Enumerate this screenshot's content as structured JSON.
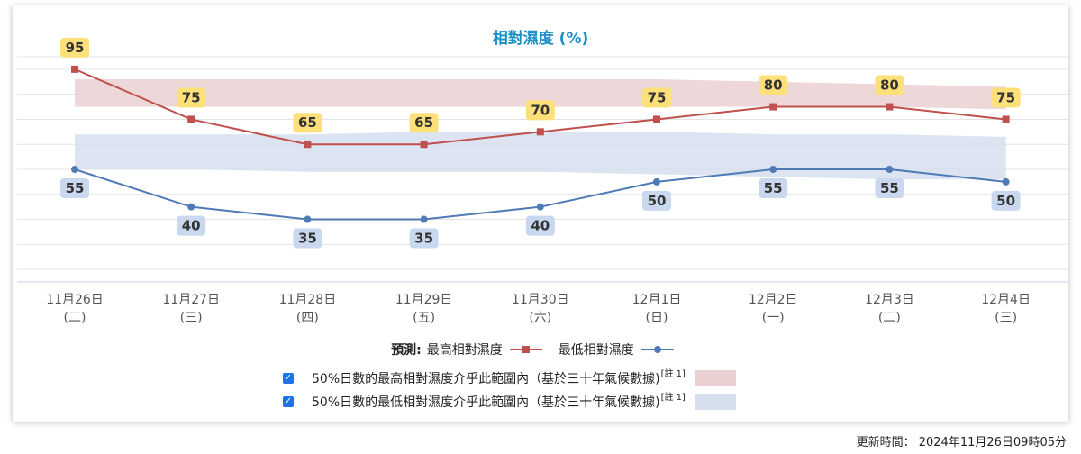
{
  "chart_data": {
    "type": "line",
    "title": "相對濕度 (%)",
    "categories": [
      "11月26日",
      "11月27日",
      "11月28日",
      "11月29日",
      "11月30日",
      "12月1日",
      "12月2日",
      "12月3日",
      "12月4日"
    ],
    "weekdays": [
      "(二)",
      "(三)",
      "(四)",
      "(五)",
      "(六)",
      "(日)",
      "(一)",
      "(二)",
      "(三)"
    ],
    "ylim": [
      10,
      100
    ],
    "gridlines": [
      15,
      25,
      35,
      45,
      55,
      65,
      75,
      85,
      95,
      100
    ],
    "series": [
      {
        "name": "最高相對濕度",
        "values": [
          95,
          75,
          65,
          65,
          70,
          75,
          80,
          80,
          75
        ],
        "color": "#c0504d",
        "marker": "square",
        "label_bg": "#fde07a"
      },
      {
        "name": "最低相對濕度",
        "values": [
          55,
          40,
          35,
          35,
          40,
          50,
          55,
          55,
          50
        ],
        "color": "#4f7ab5",
        "marker": "circle",
        "label_bg": "#c9d8ef"
      }
    ],
    "bands": [
      {
        "name": "50%日數的最高相對濕度介乎此範圍內",
        "lower": [
          80,
          80,
          80,
          80,
          80,
          80,
          80,
          80,
          79
        ],
        "upper": [
          91,
          91,
          91,
          91,
          91,
          91,
          90,
          89,
          88
        ],
        "color": "#ead0d1"
      },
      {
        "name": "50%日數的最低相對濕度介乎此範圍內",
        "lower": [
          55,
          55,
          54,
          54,
          54,
          53,
          52,
          51,
          51
        ],
        "upper": [
          69,
          69,
          69,
          70,
          70,
          70,
          69,
          69,
          68
        ],
        "color": "#d6dfee"
      }
    ]
  },
  "legend": {
    "prefix": "預測:",
    "max_label": "最高相對濕度",
    "min_label": "最低相對濕度",
    "band_max_text": "50%日數的最高相對濕度介乎此範圍內（基於三十年氣候數據)",
    "band_min_text": "50%日數的最低相對濕度介乎此範圍內（基於三十年氣候數據)",
    "note_text": "[註 1]",
    "checkbox_mark": "✓"
  },
  "footer": {
    "updated_label": "更新時間：",
    "updated_value": "2024年11月26日09時05分"
  }
}
